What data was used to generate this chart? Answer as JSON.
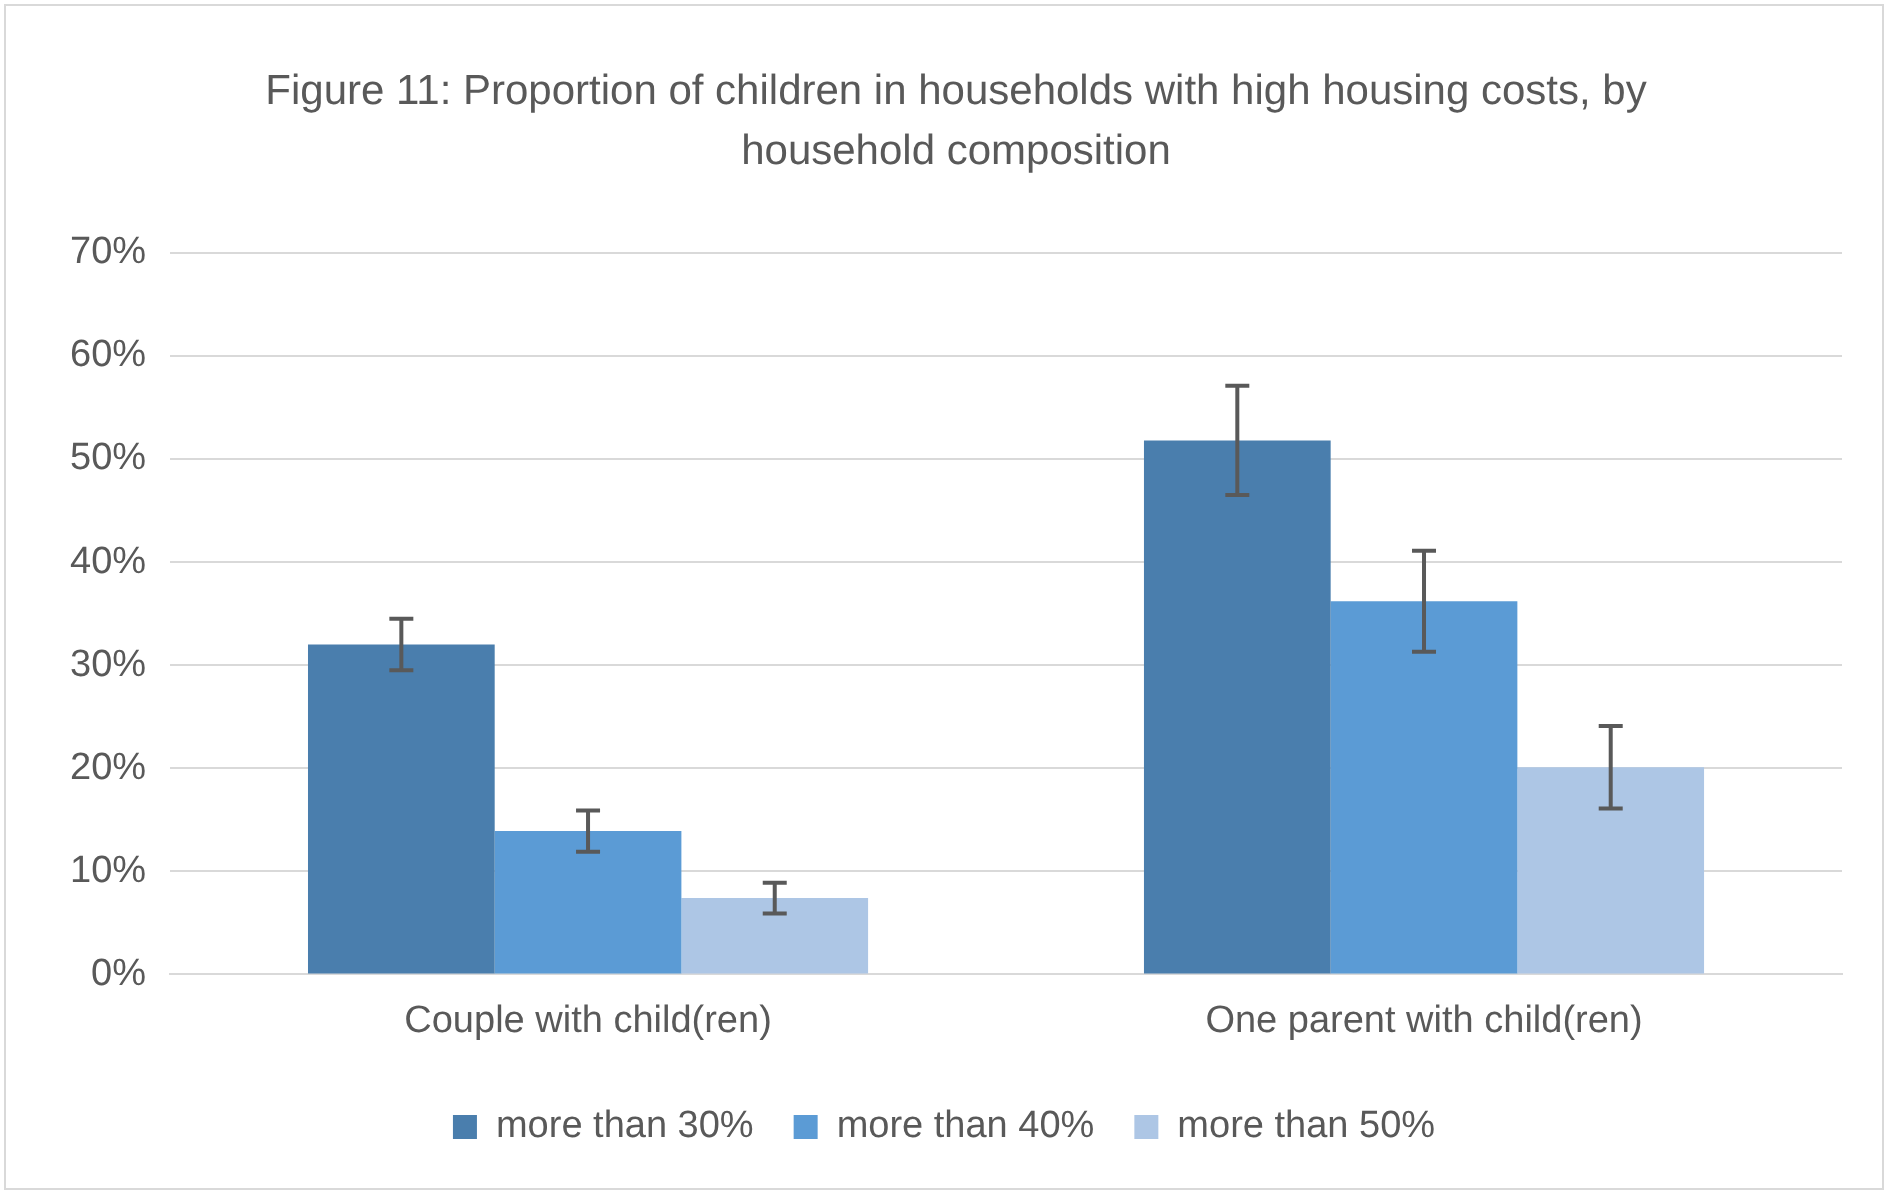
{
  "chart_data": {
    "type": "bar",
    "title": "Figure 11: Proportion of children in households with high housing costs, by household composition",
    "categories": [
      "Couple with child(ren)",
      "One parent with child(ren)"
    ],
    "series": [
      {
        "name": "more than 30%",
        "color": "#4a7ead",
        "values": [
          32,
          51.8
        ],
        "errors": [
          2.5,
          5.3
        ]
      },
      {
        "name": "more than 40%",
        "color": "#5b9bd5",
        "values": [
          13.9,
          36.2
        ],
        "errors": [
          2,
          4.9
        ]
      },
      {
        "name": "more than 50%",
        "color": "#adc6e5",
        "values": [
          7.4,
          20.1
        ],
        "errors": [
          1.5,
          4
        ]
      }
    ],
    "ylim": [
      0,
      70
    ],
    "yticks": [
      {
        "value": 0,
        "label": "0%"
      },
      {
        "value": 10,
        "label": "10%"
      },
      {
        "value": 20,
        "label": "20%"
      },
      {
        "value": 30,
        "label": "30%"
      },
      {
        "value": 40,
        "label": "40%"
      },
      {
        "value": 50,
        "label": "50%"
      },
      {
        "value": 60,
        "label": "60%"
      },
      {
        "value": 70,
        "label": "70%"
      }
    ],
    "grid": "y",
    "legend": "bottom"
  }
}
